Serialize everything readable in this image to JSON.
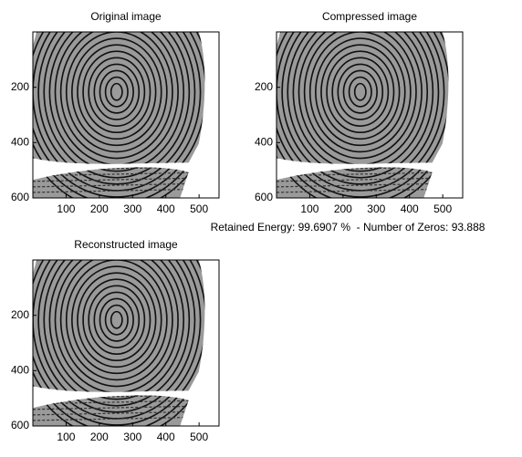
{
  "chart_data": [
    {
      "type": "image",
      "title": "Original image",
      "xlim": [
        0,
        560
      ],
      "ylim": [
        0,
        600
      ],
      "xticks": [
        100,
        200,
        300,
        400,
        500
      ],
      "yticks": [
        200,
        400,
        600
      ]
    },
    {
      "type": "image",
      "title": "Compressed image",
      "xlabel": "Retained Energy: 99.6907 %  - Number of Zeros: 93.888",
      "xlim": [
        0,
        560
      ],
      "ylim": [
        0,
        600
      ],
      "xticks": [
        100,
        200,
        300,
        400,
        500
      ],
      "yticks": [
        200,
        400,
        600
      ]
    },
    {
      "type": "image",
      "title": "Reconstructed image",
      "xlim": [
        0,
        560
      ],
      "ylim": [
        0,
        600
      ],
      "xticks": [
        100,
        200,
        300,
        400,
        500
      ],
      "yticks": [
        200,
        400,
        600
      ]
    }
  ]
}
